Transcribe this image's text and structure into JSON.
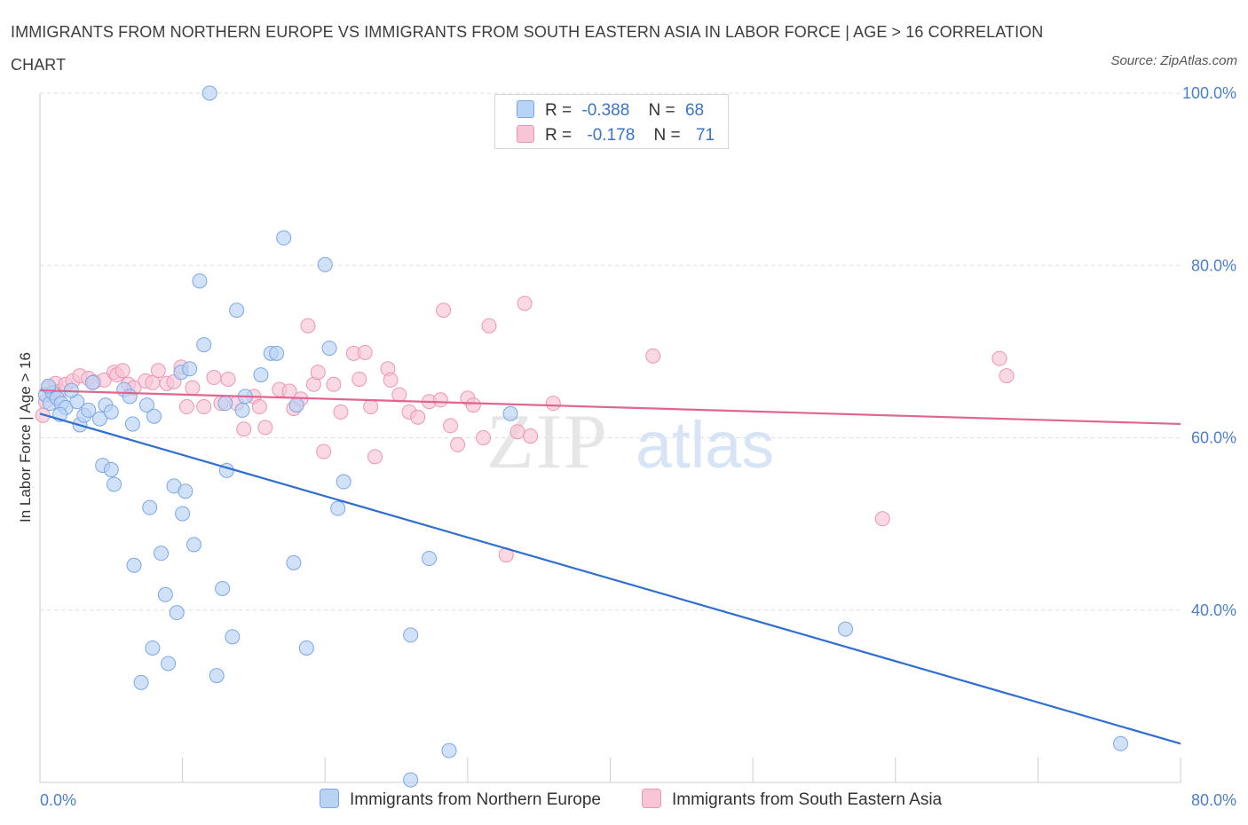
{
  "title": "IMMIGRANTS FROM NORTHERN EUROPE VS IMMIGRANTS FROM SOUTH EASTERN ASIA IN LABOR FORCE | AGE > 16 CORRELATION CHART",
  "source": "Source: ZipAtlas.com",
  "watermark": {
    "zip": "ZIP",
    "atlas": "atlas"
  },
  "legend": {
    "series1": {
      "r_label": "R =",
      "r_value": "-0.388",
      "n_label": "N =",
      "n_value": "68"
    },
    "series2": {
      "r_label": "R =",
      "r_value": "-0.178",
      "n_label": "N =",
      "n_value": "71"
    }
  },
  "colors": {
    "blue_fill": "#b9d3f5",
    "blue_stroke": "#7aa7e6",
    "blue_line": "#2f6fd0",
    "pink_fill": "#f7c5d6",
    "pink_stroke": "#ee95b2",
    "pink_line": "#e06690",
    "tick": "#4a7fd0",
    "grid": "#dddddd"
  },
  "chart_data": {
    "type": "scatter",
    "xlabel": "",
    "ylabel": "In Labor Force | Age > 16",
    "xlim": [
      0,
      80
    ],
    "ylim": [
      20,
      100
    ],
    "x_tick_labels": [
      "0.0%",
      "80.0%"
    ],
    "y_ticks": [
      40,
      60,
      80,
      100
    ],
    "y_tick_labels": [
      "40.0%",
      "60.0%",
      "80.0%",
      "100.0%"
    ],
    "grid": true,
    "legend_placement": "bottom-center",
    "series": [
      {
        "name": "Immigrants from Northern Europe",
        "color": "#b9d3f5",
        "trend": [
          [
            0,
            62.8
          ],
          [
            80,
            24.5
          ]
        ],
        "points": [
          [
            0.4,
            65.0
          ],
          [
            0.7,
            64.0
          ],
          [
            0.9,
            65.2
          ],
          [
            1.2,
            64.6
          ],
          [
            1.5,
            64.0
          ],
          [
            1.8,
            63.5
          ],
          [
            1.4,
            62.7
          ],
          [
            2.6,
            64.2
          ],
          [
            2.8,
            61.5
          ],
          [
            3.1,
            62.6
          ],
          [
            3.4,
            63.2
          ],
          [
            3.7,
            66.4
          ],
          [
            4.2,
            62.2
          ],
          [
            4.6,
            63.8
          ],
          [
            5.9,
            65.6
          ],
          [
            6.3,
            64.8
          ],
          [
            6.5,
            61.6
          ],
          [
            7.5,
            63.8
          ],
          [
            8.0,
            62.5
          ],
          [
            9.9,
            67.6
          ],
          [
            10.5,
            68.0
          ],
          [
            11.5,
            70.8
          ],
          [
            13.0,
            64.0
          ],
          [
            14.2,
            63.2
          ],
          [
            14.4,
            64.8
          ],
          [
            15.5,
            67.3
          ],
          [
            16.2,
            69.8
          ],
          [
            16.6,
            69.8
          ],
          [
            18.0,
            63.8
          ],
          [
            20.0,
            80.1
          ],
          [
            20.3,
            70.4
          ],
          [
            11.9,
            100.0
          ],
          [
            17.1,
            83.2
          ],
          [
            11.2,
            78.2
          ],
          [
            13.8,
            74.8
          ],
          [
            33.0,
            62.8
          ],
          [
            4.4,
            56.8
          ],
          [
            5.0,
            56.3
          ],
          [
            5.2,
            54.6
          ],
          [
            9.4,
            54.4
          ],
          [
            10.2,
            53.8
          ],
          [
            7.7,
            51.9
          ],
          [
            10.0,
            51.2
          ],
          [
            13.1,
            56.2
          ],
          [
            21.3,
            54.9
          ],
          [
            20.9,
            51.8
          ],
          [
            6.6,
            45.2
          ],
          [
            8.5,
            46.6
          ],
          [
            10.8,
            47.6
          ],
          [
            17.8,
            45.5
          ],
          [
            27.3,
            46.0
          ],
          [
            8.8,
            41.8
          ],
          [
            9.6,
            39.7
          ],
          [
            12.8,
            42.5
          ],
          [
            7.9,
            35.6
          ],
          [
            9.0,
            33.8
          ],
          [
            13.5,
            36.9
          ],
          [
            18.7,
            35.6
          ],
          [
            26.0,
            37.1
          ],
          [
            7.1,
            31.6
          ],
          [
            12.4,
            32.4
          ],
          [
            56.5,
            37.8
          ],
          [
            28.7,
            23.7
          ],
          [
            26.0,
            20.3
          ],
          [
            75.8,
            24.5
          ],
          [
            0.6,
            66.0
          ],
          [
            2.2,
            65.5
          ],
          [
            5.0,
            63.0
          ]
        ]
      },
      {
        "name": "Immigrants from South Eastern Asia",
        "color": "#f7c5d6",
        "trend": [
          [
            0,
            65.5
          ],
          [
            80,
            61.6
          ]
        ],
        "points": [
          [
            0.2,
            62.6
          ],
          [
            0.4,
            64.2
          ],
          [
            0.6,
            65.8
          ],
          [
            1.1,
            66.3
          ],
          [
            1.4,
            65.4
          ],
          [
            1.8,
            66.2
          ],
          [
            2.3,
            66.6
          ],
          [
            2.8,
            67.2
          ],
          [
            3.4,
            66.9
          ],
          [
            3.8,
            66.5
          ],
          [
            4.5,
            66.7
          ],
          [
            5.2,
            67.6
          ],
          [
            5.4,
            67.3
          ],
          [
            5.8,
            67.8
          ],
          [
            6.2,
            66.2
          ],
          [
            6.6,
            65.8
          ],
          [
            7.4,
            66.6
          ],
          [
            7.9,
            66.4
          ],
          [
            8.3,
            67.8
          ],
          [
            8.9,
            66.3
          ],
          [
            9.4,
            66.5
          ],
          [
            9.9,
            68.2
          ],
          [
            10.3,
            63.6
          ],
          [
            10.7,
            65.8
          ],
          [
            11.5,
            63.6
          ],
          [
            12.2,
            67.0
          ],
          [
            12.7,
            64.0
          ],
          [
            13.2,
            66.8
          ],
          [
            13.8,
            64.0
          ],
          [
            14.3,
            61.0
          ],
          [
            15.0,
            64.8
          ],
          [
            15.4,
            63.6
          ],
          [
            15.8,
            61.2
          ],
          [
            16.8,
            65.6
          ],
          [
            17.5,
            65.4
          ],
          [
            17.8,
            63.4
          ],
          [
            18.3,
            64.5
          ],
          [
            18.8,
            73.0
          ],
          [
            19.2,
            66.2
          ],
          [
            19.5,
            67.6
          ],
          [
            19.9,
            58.4
          ],
          [
            20.6,
            66.2
          ],
          [
            21.1,
            63.0
          ],
          [
            22.0,
            69.8
          ],
          [
            22.4,
            66.8
          ],
          [
            23.2,
            63.6
          ],
          [
            23.5,
            57.8
          ],
          [
            24.4,
            68.0
          ],
          [
            24.6,
            66.7
          ],
          [
            25.2,
            65.0
          ],
          [
            25.9,
            63.0
          ],
          [
            26.5,
            62.4
          ],
          [
            27.3,
            64.2
          ],
          [
            28.1,
            64.4
          ],
          [
            28.8,
            61.4
          ],
          [
            29.3,
            59.2
          ],
          [
            30.0,
            64.6
          ],
          [
            30.4,
            63.8
          ],
          [
            31.1,
            60.0
          ],
          [
            31.5,
            73.0
          ],
          [
            32.7,
            46.4
          ],
          [
            33.5,
            60.7
          ],
          [
            34.4,
            60.2
          ],
          [
            28.3,
            74.8
          ],
          [
            34.0,
            75.6
          ],
          [
            43.0,
            69.5
          ],
          [
            59.1,
            50.6
          ],
          [
            67.3,
            69.2
          ],
          [
            67.8,
            67.2
          ],
          [
            36.0,
            64.0
          ],
          [
            22.8,
            69.9
          ]
        ]
      }
    ]
  }
}
